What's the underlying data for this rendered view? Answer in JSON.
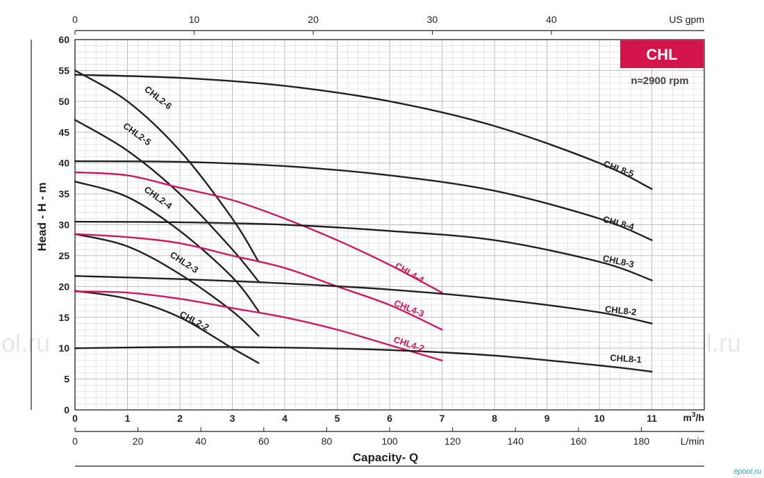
{
  "chart_data": {
    "type": "line",
    "badge": "CHL",
    "speed": "n≈2900 rpm",
    "xlabel": "Capacity- Q",
    "ylabel": "Head - H - m",
    "x_unit": "m³/h",
    "x_unit_base": "m",
    "x_unit_sup": "3",
    "x_unit_tail": "/h",
    "top_unit": "US gpm",
    "bottom_unit": "L/min",
    "xlim": [
      0,
      12
    ],
    "ylim": [
      0,
      60
    ],
    "x_ticks": [
      "0",
      "1",
      "2",
      "3",
      "4",
      "5",
      "6",
      "7",
      "8",
      "9",
      "10",
      "11"
    ],
    "y_ticks": [
      "0",
      "5",
      "10",
      "15",
      "20",
      "25",
      "30",
      "35",
      "40",
      "45",
      "50",
      "55",
      "60"
    ],
    "top_ticks": [
      "0",
      "10",
      "20",
      "30",
      "40"
    ],
    "bottom_ticks": [
      "0",
      "20",
      "40",
      "60",
      "80",
      "100",
      "120",
      "140",
      "160",
      "180"
    ],
    "watermark": "ePool.ru",
    "corner_mark": "epool.ru",
    "colors": {
      "dark": "#231f20",
      "accent": "#d1185a",
      "badge": "#d4144a",
      "grid": "#c9c9c9"
    },
    "series": [
      {
        "name": "CHL2-2",
        "color": "#231f20",
        "x": [
          0,
          1,
          2,
          3,
          3.5
        ],
        "y": [
          19.3,
          18,
          15,
          10,
          7.6
        ]
      },
      {
        "name": "CHL2-3",
        "color": "#231f20",
        "x": [
          0,
          1,
          2,
          3,
          3.5
        ],
        "y": [
          28.5,
          26.5,
          22,
          16,
          12
        ]
      },
      {
        "name": "CHL2-4",
        "color": "#231f20",
        "x": [
          0,
          1,
          2,
          3,
          3.5
        ],
        "y": [
          37,
          34.5,
          29,
          21.5,
          16
        ]
      },
      {
        "name": "CHL2-5",
        "color": "#231f20",
        "x": [
          0,
          1,
          2,
          3,
          3.5
        ],
        "y": [
          47,
          42,
          35,
          26,
          20.8
        ]
      },
      {
        "name": "CHL2-6",
        "color": "#231f20",
        "x": [
          0,
          1,
          2,
          3,
          3.5
        ],
        "y": [
          55,
          50,
          42,
          31,
          24
        ]
      },
      {
        "name": "CHL4-2",
        "color": "#d1185a",
        "x": [
          0,
          1,
          2,
          3,
          4,
          5,
          6,
          7
        ],
        "y": [
          19.2,
          19,
          18,
          16.5,
          15,
          13,
          10.5,
          8
        ]
      },
      {
        "name": "CHL4-3",
        "color": "#d1185a",
        "x": [
          0,
          1,
          2,
          3,
          4,
          5,
          6,
          7
        ],
        "y": [
          28.5,
          28,
          27,
          25,
          23,
          20,
          17,
          13
        ]
      },
      {
        "name": "CHL4-4",
        "color": "#d1185a",
        "x": [
          0,
          1,
          2,
          3,
          4,
          5,
          6,
          7
        ],
        "y": [
          38.5,
          38,
          36,
          34,
          31,
          27.5,
          23.5,
          19
        ]
      },
      {
        "name": "CHL8-1",
        "color": "#231f20",
        "x": [
          0,
          2,
          4,
          6,
          8,
          10,
          11
        ],
        "y": [
          10,
          10.2,
          10.1,
          9.7,
          8.8,
          7.2,
          6.2
        ]
      },
      {
        "name": "CHL8-2",
        "color": "#231f20",
        "x": [
          0,
          2,
          4,
          6,
          8,
          10,
          11
        ],
        "y": [
          21.7,
          21.2,
          20.5,
          19.5,
          18,
          15.8,
          14
        ]
      },
      {
        "name": "CHL8-3",
        "color": "#231f20",
        "x": [
          0,
          2,
          4,
          6,
          8,
          10,
          11
        ],
        "y": [
          30.5,
          30.4,
          30,
          29,
          27.5,
          24,
          21
        ]
      },
      {
        "name": "CHL8-4",
        "color": "#231f20",
        "x": [
          0,
          2,
          4,
          6,
          8,
          10,
          11
        ],
        "y": [
          40.3,
          40.2,
          39.5,
          38,
          35.5,
          31,
          27.5
        ]
      },
      {
        "name": "CHL8-5",
        "color": "#231f20",
        "x": [
          0,
          2,
          4,
          6,
          8,
          10,
          11
        ],
        "y": [
          54.3,
          53.8,
          52.5,
          50,
          46,
          40,
          35.8
        ]
      }
    ]
  }
}
